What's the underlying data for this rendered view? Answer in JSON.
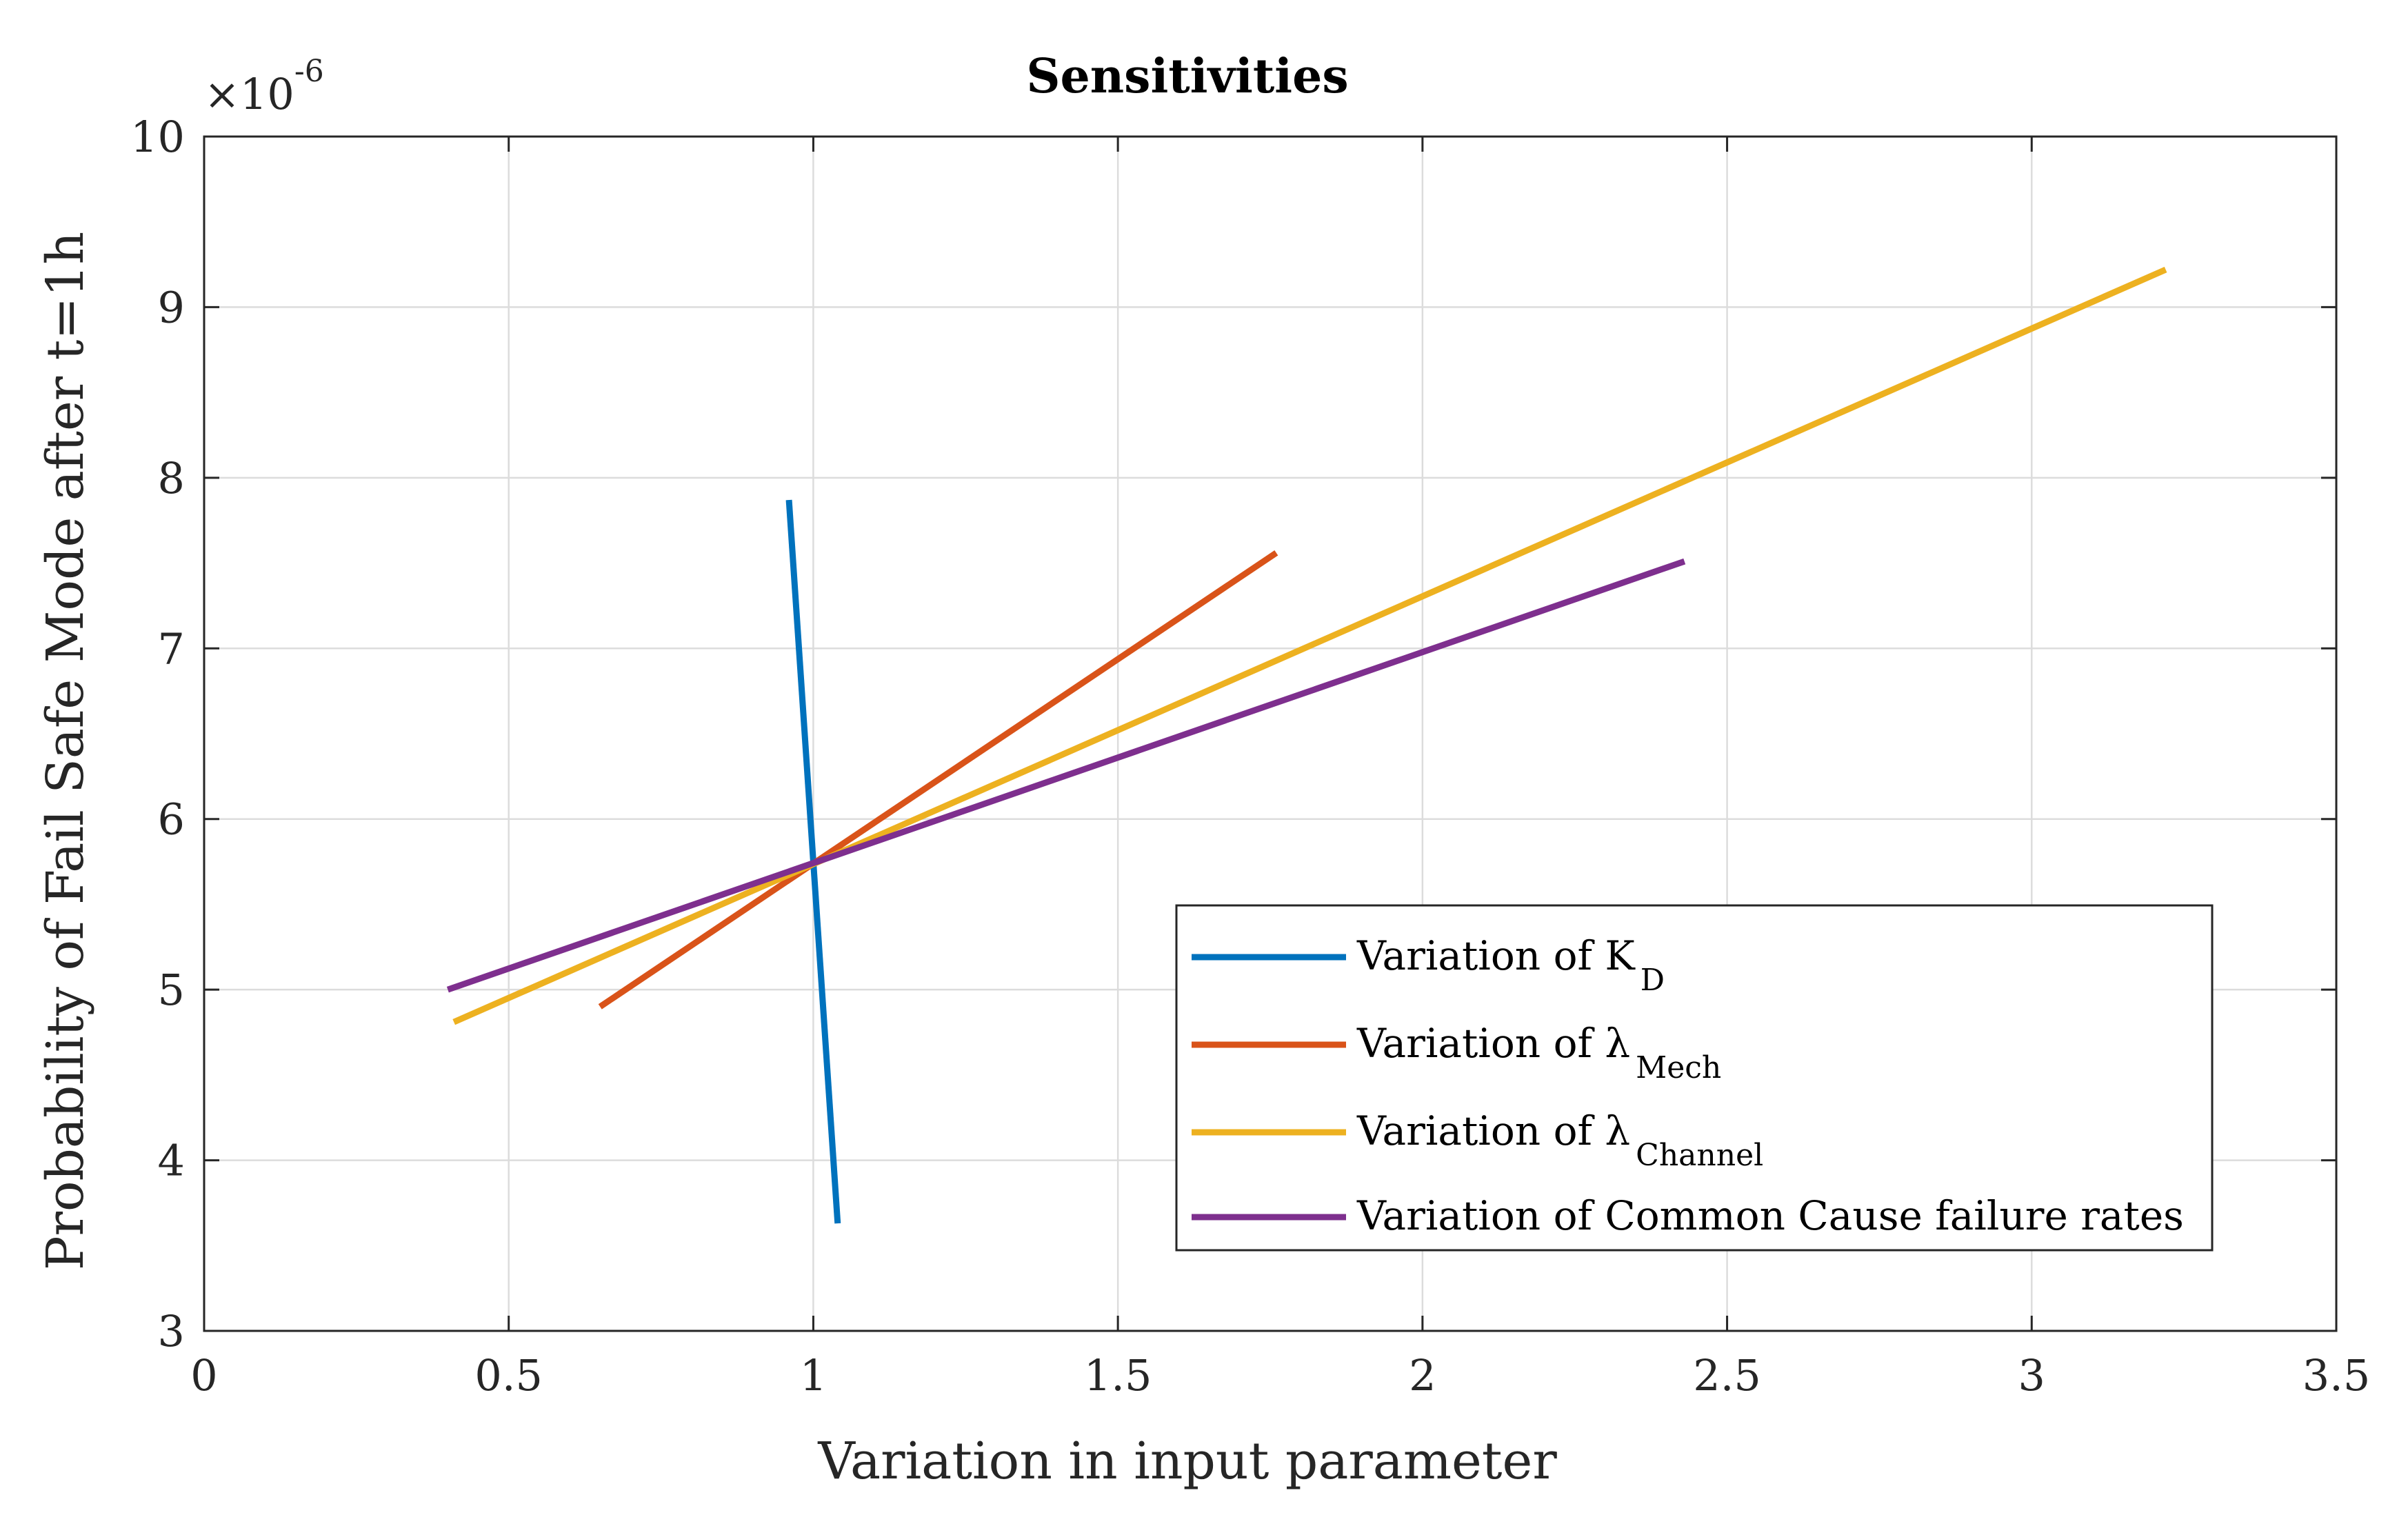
{
  "chart_data": {
    "type": "line",
    "title": "Sensitivities",
    "xlabel": "Variation in input parameter",
    "ylabel": "Probability of Fail Safe Mode after t=1h",
    "xlim": [
      0,
      3.5
    ],
    "ylim": [
      3,
      10
    ],
    "x_ticks": [
      "0",
      "0.5",
      "1",
      "1.5",
      "2",
      "2.5",
      "3",
      "3.5"
    ],
    "y_ticks": [
      "3",
      "4",
      "5",
      "6",
      "7",
      "8",
      "9",
      "10"
    ],
    "y_multiplier": {
      "base": "×10",
      "exponent": "-6"
    },
    "grid": true,
    "legend_position": "bottom-right",
    "series": [
      {
        "name": "Variation of K",
        "subscript": "D",
        "color": "#0072BD",
        "x": [
          0.96,
          1.04
        ],
        "y": [
          7.87,
          3.63
        ]
      },
      {
        "name": "Variation of λ",
        "subscript": "Mech",
        "color": "#D95319",
        "x": [
          0.65,
          1.76
        ],
        "y": [
          4.9,
          7.56
        ]
      },
      {
        "name": "Variation of λ",
        "subscript": "Channel",
        "color": "#EDB120",
        "x": [
          0.41,
          3.22
        ],
        "y": [
          4.81,
          9.22
        ]
      },
      {
        "name": "Variation of Common Cause failure rates",
        "subscript": "",
        "color": "#7E2F8E",
        "x": [
          0.4,
          2.43
        ],
        "y": [
          5.0,
          7.51
        ]
      }
    ]
  }
}
